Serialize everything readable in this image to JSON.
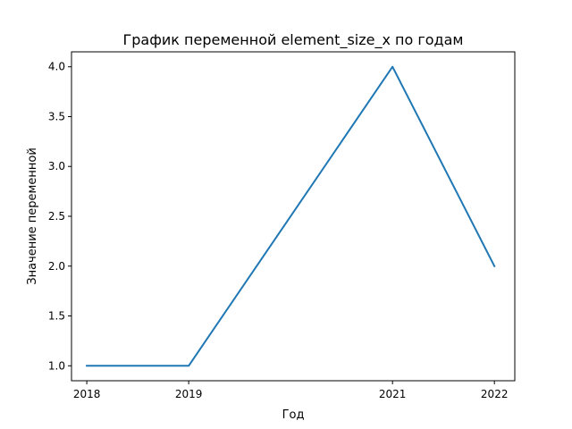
{
  "chart_data": {
    "type": "line",
    "title": "График переменной element_size_x по годам",
    "xlabel": "Год",
    "ylabel": "Значение переменной",
    "x": [
      2018,
      2019,
      2021,
      2022
    ],
    "series": [
      {
        "values": [
          1.0,
          1.0,
          4.0,
          2.0
        ],
        "color": "#1f77b4"
      }
    ],
    "xlim": [
      2017.85,
      2022.2
    ],
    "ylim": [
      0.85,
      4.15
    ],
    "xticks": [
      2018,
      2019,
      2021,
      2022
    ],
    "xtick_labels": [
      "2018",
      "2019",
      "2021",
      "2022"
    ],
    "yticks": [
      1.0,
      1.5,
      2.0,
      2.5,
      3.0,
      3.5,
      4.0
    ],
    "ytick_labels": [
      "1.0",
      "1.5",
      "2.0",
      "2.5",
      "3.0",
      "3.5",
      "4.0"
    ],
    "grid": false,
    "legend": false
  }
}
